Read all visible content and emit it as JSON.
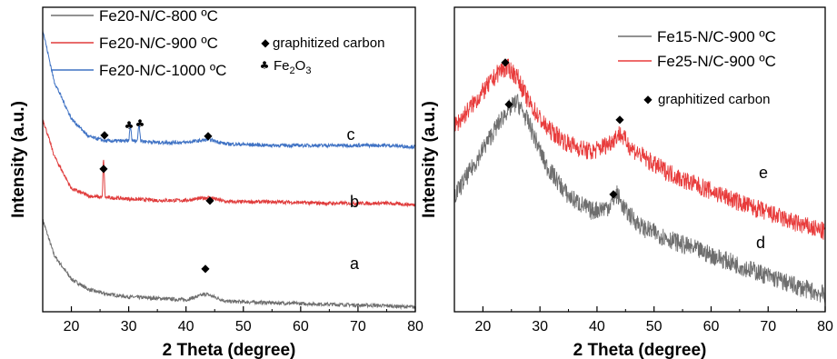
{
  "chart_data": [
    {
      "type": "line",
      "xlabel": "2 Theta (degree)",
      "ylabel": "Intensity (a.u.)",
      "xlim": [
        15,
        80
      ],
      "xticks": [
        "20",
        "30",
        "40",
        "50",
        "60",
        "70",
        "80"
      ],
      "legend_position": "top-left",
      "series": [
        {
          "name": "Fe20-N/C-800 ºC",
          "color": "#6e6e6e",
          "curve_label": "a",
          "x": [
            15,
            17,
            20,
            23,
            26,
            30,
            35,
            40,
            43.5,
            47,
            55,
            65,
            75,
            80
          ],
          "y": [
            0.62,
            0.38,
            0.22,
            0.15,
            0.12,
            0.1,
            0.09,
            0.08,
            0.12,
            0.07,
            0.06,
            0.05,
            0.04,
            0.03
          ]
        },
        {
          "name": "Fe20-N/C-900 ºC",
          "color": "#e03c3c",
          "curve_label": "b",
          "x": [
            15,
            17,
            20,
            23,
            25.4,
            25.6,
            25.9,
            30,
            35,
            40,
            44,
            47,
            55,
            65,
            75,
            80
          ],
          "y": [
            1.3,
            1.05,
            0.83,
            0.78,
            0.77,
            1.05,
            0.77,
            0.76,
            0.75,
            0.75,
            0.77,
            0.74,
            0.74,
            0.73,
            0.73,
            0.72
          ]
        },
        {
          "name": "Fe20-N/C-1000 ºC",
          "color": "#3f72c4",
          "curve_label": "c",
          "x": [
            15,
            17,
            20,
            23,
            26,
            30.0,
            30.3,
            30.6,
            31.5,
            31.8,
            32.1,
            35,
            40,
            44,
            47,
            55,
            65,
            75,
            80
          ],
          "y": [
            1.9,
            1.55,
            1.3,
            1.18,
            1.15,
            1.15,
            1.26,
            1.15,
            1.15,
            1.28,
            1.15,
            1.14,
            1.14,
            1.16,
            1.13,
            1.12,
            1.12,
            1.12,
            1.11
          ]
        }
      ],
      "annotations": {
        "graphitized_carbon": "graphitized carbon",
        "fe2o3": "Fe",
        "fe2o3_sub": "2",
        "fe2o3_tail": "O",
        "fe2o3_sub2": "3"
      }
    },
    {
      "type": "line",
      "xlabel": "2 Theta (degree)",
      "ylabel": "Intensity (a.u.)",
      "xlim": [
        15,
        80
      ],
      "xticks": [
        "20",
        "30",
        "40",
        "50",
        "60",
        "70",
        "80"
      ],
      "legend_position": "top-right",
      "series": [
        {
          "name": "Fe15-N/C-900 ºC",
          "color": "#6e6e6e",
          "curve_label": "d",
          "x": [
            15,
            18,
            21,
            24,
            26,
            28,
            31,
            35,
            39,
            42,
            43.5,
            45,
            48,
            55,
            65,
            75,
            80
          ],
          "y": [
            0.55,
            0.68,
            0.82,
            0.95,
            1.0,
            0.9,
            0.7,
            0.55,
            0.48,
            0.5,
            0.56,
            0.48,
            0.4,
            0.32,
            0.22,
            0.12,
            0.08
          ]
        },
        {
          "name": "Fe25-N/C-900 ºC",
          "color": "#e83c3c",
          "curve_label": "e",
          "x": [
            15,
            18,
            21,
            23,
            24.5,
            26,
            28,
            31,
            35,
            39,
            42,
            44,
            46,
            50,
            55,
            65,
            75,
            80
          ],
          "y": [
            0.88,
            0.98,
            1.08,
            1.15,
            1.16,
            1.12,
            1.0,
            0.88,
            0.8,
            0.76,
            0.8,
            0.85,
            0.78,
            0.7,
            0.63,
            0.52,
            0.42,
            0.38
          ]
        }
      ],
      "annotations": {
        "graphitized_carbon": "graphitized carbon"
      }
    }
  ]
}
